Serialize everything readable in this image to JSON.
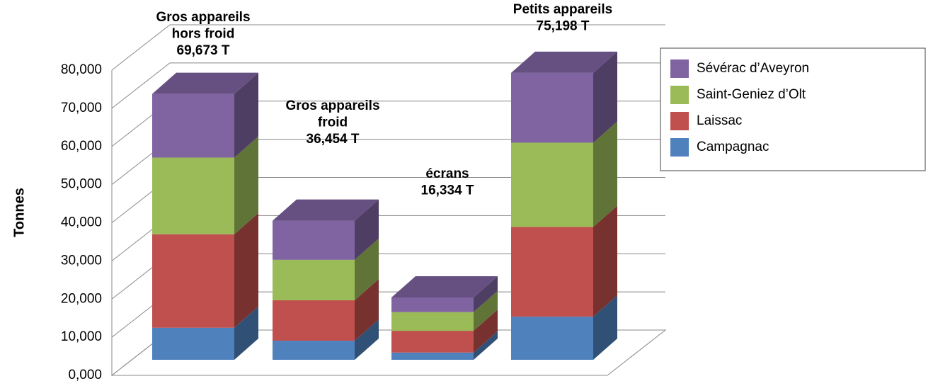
{
  "chart_data": {
    "type": "bar3d_stacked",
    "y_label": "Tonnes",
    "ylim": [
      0,
      80000
    ],
    "yticks": [
      {
        "value": 0,
        "label": "0,000"
      },
      {
        "value": 10000,
        "label": "10,000"
      },
      {
        "value": 20000,
        "label": "20,000"
      },
      {
        "value": 30000,
        "label": "30,000"
      },
      {
        "value": 40000,
        "label": "40,000"
      },
      {
        "value": 50000,
        "label": "50,000"
      },
      {
        "value": 60000,
        "label": "60,000"
      },
      {
        "value": 70000,
        "label": "70,000"
      },
      {
        "value": 80000,
        "label": "80,000"
      }
    ],
    "grid": true,
    "legend": "right",
    "categories": [
      null,
      null,
      null,
      null
    ],
    "annotations": [
      [
        "Gros appareils",
        "hors froid",
        "69,673 T"
      ],
      [
        "Gros appareils",
        "froid",
        "36,454 T"
      ],
      [
        "écrans",
        "16,334 T"
      ],
      [
        "Petits appareils",
        "75,198 T"
      ]
    ],
    "series": [
      {
        "name": "Campagnac",
        "color": "#4f81bd",
        "values": [
          8400,
          5000,
          1900,
          11300
        ]
      },
      {
        "name": "Laissac",
        "color": "#c0504d",
        "values": [
          24500,
          10600,
          5700,
          23500
        ]
      },
      {
        "name": "Saint-Geniez d’Olt",
        "color": "#9bbb59",
        "values": [
          20100,
          10600,
          4900,
          22100
        ]
      },
      {
        "name": "Sévérac d’Aveyron",
        "color": "#8064a2",
        "values": [
          16673,
          10254,
          3834,
          18298
        ]
      }
    ]
  }
}
